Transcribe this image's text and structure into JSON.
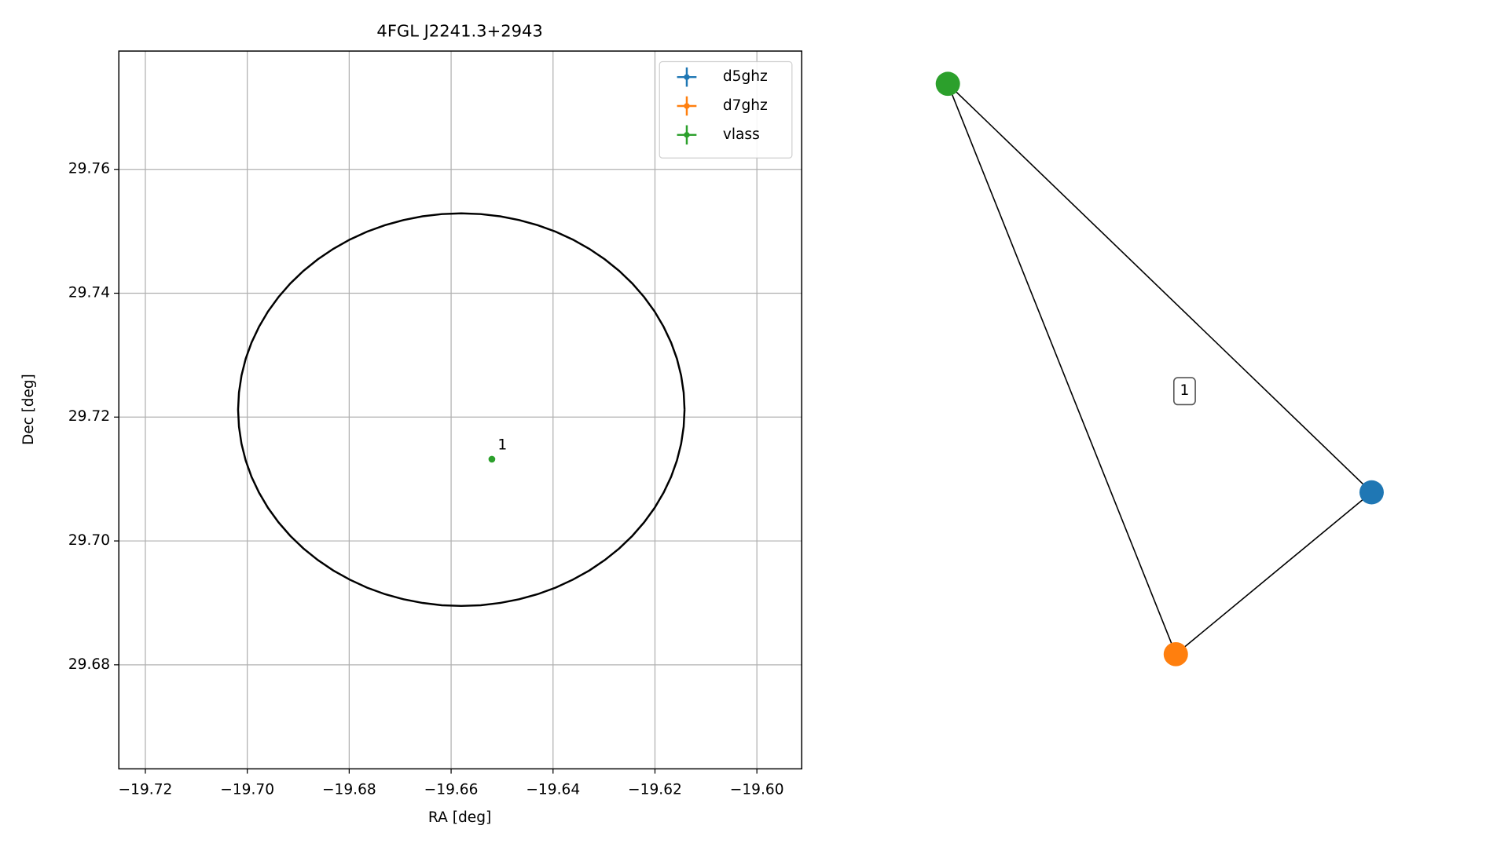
{
  "chart_data": {
    "type": "scatter",
    "title": "4FGL J2241.3+2943",
    "xlabel": "RA [deg]",
    "ylabel": "Dec [deg]",
    "xlim": [
      -19.7252,
      -19.5912
    ],
    "ylim": [
      29.6632,
      29.7791
    ],
    "xticks": [
      {
        "value": -19.72,
        "label": "−19.72"
      },
      {
        "value": -19.7,
        "label": "−19.70"
      },
      {
        "value": -19.68,
        "label": "−19.68"
      },
      {
        "value": -19.66,
        "label": "−19.66"
      },
      {
        "value": -19.64,
        "label": "−19.64"
      },
      {
        "value": -19.62,
        "label": "−19.62"
      },
      {
        "value": -19.6,
        "label": "−19.60"
      }
    ],
    "yticks": [
      29.68,
      {
        "value": 29.7,
        "label": "29.70"
      },
      29.72,
      29.74,
      29.76
    ],
    "grid": true,
    "legend": "upper right",
    "series": [
      {
        "name": "d5ghz",
        "color": "#1f77b4",
        "x": [],
        "y": []
      },
      {
        "name": "d7ghz",
        "color": "#ff7f0e",
        "x": [],
        "y": []
      },
      {
        "name": "vlass",
        "color": "#2ca02c",
        "x": [
          -19.652
        ],
        "y": [
          29.7132
        ],
        "point_labels": [
          "1"
        ]
      }
    ],
    "ellipse": {
      "x": -19.658,
      "y": 29.7212,
      "rx": 0.0438,
      "ry": 0.0317,
      "color": "#000000"
    }
  },
  "graph": {
    "nodes": [
      {
        "color": "#2ca02c"
      },
      {
        "color": "#1f77b4"
      },
      {
        "color": "#ff7f0e"
      }
    ],
    "edges": [
      [
        0,
        1
      ],
      [
        0,
        2
      ],
      [
        2,
        1
      ]
    ],
    "label": "1"
  }
}
